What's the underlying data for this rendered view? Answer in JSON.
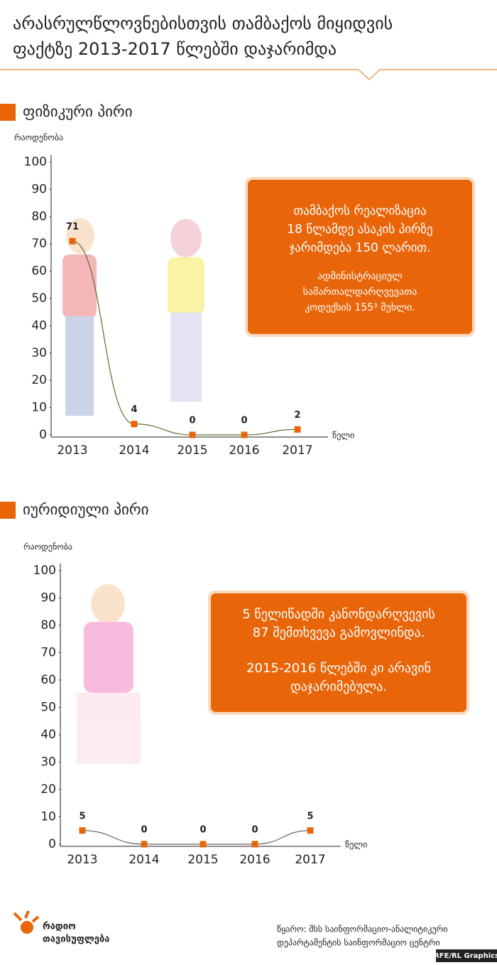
{
  "title": [
    "არასრულწლოვნებისთვის თამბაქოს მიყიდვის",
    "ფაქტზე 2013-2017 წლებში დაჯარიმდა"
  ],
  "chart_data": [
    {
      "type": "line",
      "title": "ფიზიკური პირი",
      "y_label": "რაოდენობა",
      "x_label": "წელი",
      "categories": [
        "2013",
        "2014",
        "2015",
        "2016",
        "2017"
      ],
      "values": [
        71,
        4,
        0,
        0,
        2
      ],
      "color": "#e8650a",
      "line_color": "#5a6e2a",
      "ylim": [
        0,
        100
      ],
      "yticks": [
        0,
        10,
        20,
        30,
        40,
        50,
        60,
        70,
        80,
        90,
        100
      ],
      "annotation": [
        "თამბაქოს რეალიზაცია",
        "18 წლამდე ასაკის პირზე",
        "ჯარიმდება 150 ლარით."
      ],
      "note": [
        "ადმინისტრაციულ",
        "სამართალდარღვევათა",
        "კოდექსის 155³ მუხლი."
      ]
    },
    {
      "type": "line",
      "title": "იურიდიული პირი",
      "y_label": "რაოდენობა",
      "x_label": "წელი",
      "categories": [
        "2013",
        "2014",
        "2015",
        "2016",
        "2017"
      ],
      "values": [
        5,
        0,
        0,
        0,
        5
      ],
      "color": "#e8650a",
      "line_color": "#666666",
      "ylim": [
        0,
        100
      ],
      "yticks": [
        0,
        10,
        20,
        30,
        40,
        50,
        60,
        70,
        80,
        90,
        100
      ],
      "annotation": [
        "5 წელიწადში კანონდარღვევის",
        "87 შემთხვევა გამოვლინდა."
      ],
      "note": [
        "2015-2016 წლებში კი არავინ",
        "დაჯარიმებულა."
      ]
    }
  ],
  "logo": [
    "რადიო",
    "თავისუფლება"
  ],
  "source": [
    "წყარო: შსს საინფორმაციო-ანალიტიკური",
    "დეპარტამენტის საინფორმაციო ცენტრი"
  ],
  "credit": "RFE/RL Graphics"
}
